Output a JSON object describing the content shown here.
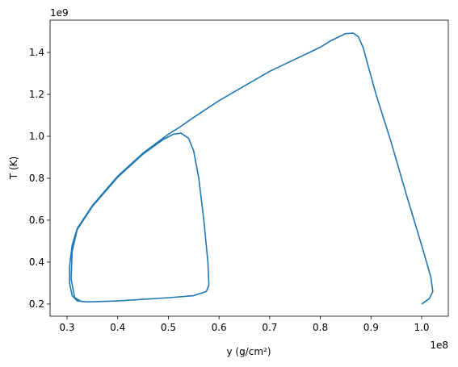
{
  "chart_data": {
    "type": "line",
    "xlabel": "y (g/cm²)",
    "ylabel": "T (K)",
    "x_offset_label": "1e8",
    "y_offset_label": "1e9",
    "xlim": [
      0.2665,
      1.0526
    ],
    "ylim": [
      0.142,
      1.554
    ],
    "xticks": [
      0.3,
      0.4,
      0.5,
      0.6,
      0.7,
      0.8,
      0.9,
      {
        "value": 1.0,
        "label": "1.0"
      }
    ],
    "yticks": [
      0.2,
      0.4,
      0.6,
      0.8,
      {
        "value": 1.0,
        "label": "1.0"
      },
      1.2,
      1.4
    ],
    "series": [
      {
        "color": "#1f77b4",
        "x": [
          1.0,
          1.015,
          1.022,
          1.018,
          1.0,
          0.97,
          0.94,
          0.91,
          0.895,
          0.885,
          0.875,
          0.865,
          0.85,
          0.82,
          0.8,
          0.7,
          0.6,
          0.55,
          0.52,
          0.5,
          0.45,
          0.4,
          0.35,
          0.32,
          0.31,
          0.305,
          0.305,
          0.31,
          0.32,
          0.34,
          0.4,
          0.5,
          0.55,
          0.575,
          0.58,
          0.578,
          0.57,
          0.56,
          0.55,
          0.54,
          0.525,
          0.51,
          0.49,
          0.45,
          0.4,
          0.35,
          0.32,
          0.31,
          0.308,
          0.315,
          0.33
        ],
        "values": [
          0.2,
          0.225,
          0.26,
          0.33,
          0.48,
          0.72,
          0.97,
          1.2,
          1.33,
          1.42,
          1.475,
          1.492,
          1.49,
          1.455,
          1.425,
          1.31,
          1.17,
          1.09,
          1.04,
          1.01,
          0.92,
          0.81,
          0.67,
          0.56,
          0.48,
          0.38,
          0.3,
          0.24,
          0.215,
          0.21,
          0.215,
          0.23,
          0.24,
          0.26,
          0.29,
          0.4,
          0.6,
          0.8,
          0.93,
          0.99,
          1.015,
          1.01,
          0.985,
          0.915,
          0.805,
          0.665,
          0.555,
          0.45,
          0.32,
          0.23,
          0.21
        ]
      }
    ]
  }
}
